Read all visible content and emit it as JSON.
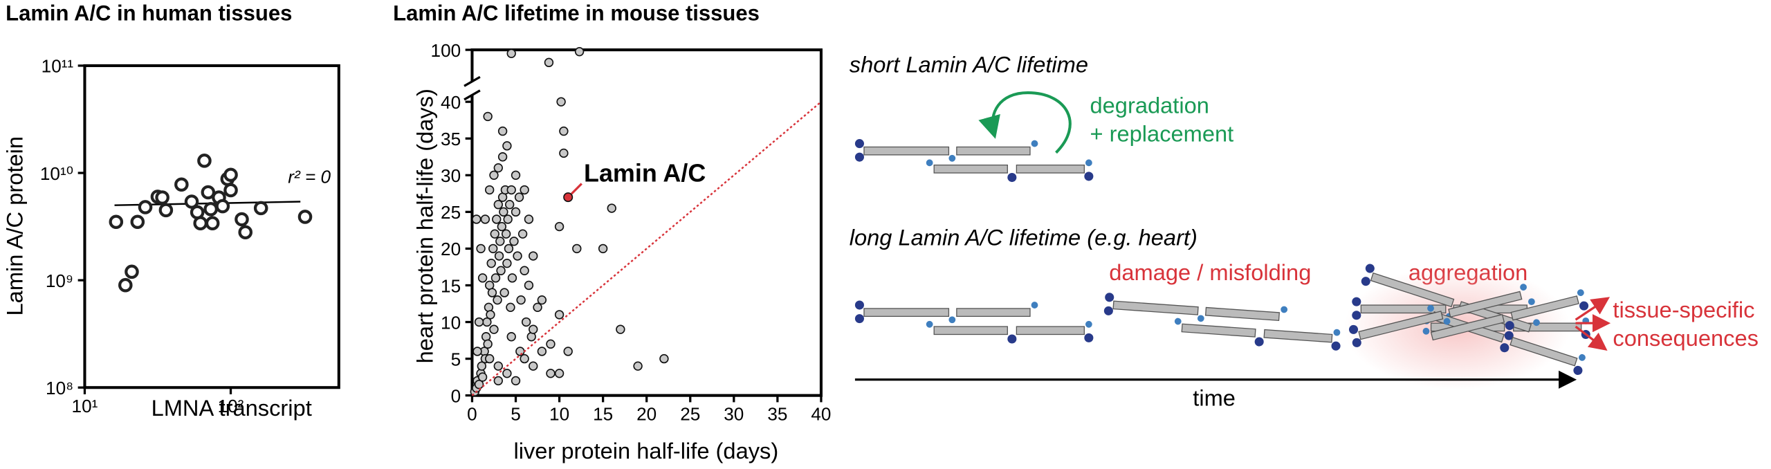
{
  "chart_data": [
    {
      "type": "scatter",
      "title": "Lamin A/C in human tissues",
      "x_label": "LMNA transcript",
      "y_label": "Lamin A/C protein",
      "x": [
        16.4,
        19,
        21,
        23,
        26,
        31.6,
        34,
        36,
        46,
        54,
        59,
        62,
        66,
        70,
        73,
        75,
        83,
        88,
        95,
        100,
        100,
        119,
        126,
        161,
        323
      ],
      "values": [
        3500000000,
        900000000,
        1200000000,
        3500000000,
        4800000000,
        6000000000,
        5900000000,
        4500000000,
        7800000000,
        5400000000,
        4300000000,
        3400000000,
        13000000000,
        6600000000,
        4600000000,
        3400000000,
        5900000000,
        4900000000,
        8800000000,
        9600000000,
        6900000000,
        3700000000,
        2800000000,
        4700000000,
        3900000000
      ],
      "fit": {
        "x": [
          16,
          300
        ],
        "values": [
          5000000000,
          5400000000
        ]
      },
      "annotation": "r² = 0",
      "log_x": true,
      "log_y": true,
      "xlim": [
        10,
        550
      ],
      "ylim": [
        100000000,
        100000000000
      ],
      "xticks": [
        {
          "value": 10,
          "label": "10¹"
        },
        {
          "value": 100,
          "label": "10²"
        }
      ],
      "yticks": [
        {
          "value": 100000000,
          "label": "10⁸"
        },
        {
          "value": 1000000000,
          "label": "10⁹"
        },
        {
          "value": 10000000000,
          "label": "10¹⁰"
        },
        {
          "value": 100000000000,
          "label": "10¹¹"
        }
      ],
      "point_color": "#ffffff"
    },
    {
      "type": "scatter",
      "title": "Lamin A/C lifetime in mouse tissues",
      "x_label": "liver protein half-life (days)",
      "y_label": "heart protein half-life (days)",
      "x": [
        0.3,
        0.5,
        0.6,
        0.8,
        1,
        1.1,
        1.2,
        1.4,
        1.5,
        1.6,
        1.7,
        1.8,
        1.9,
        2,
        2.1,
        2.2,
        2.3,
        2.4,
        2.5,
        2.6,
        2.7,
        2.8,
        2.9,
        3,
        3.1,
        3.2,
        3.3,
        3.4,
        3.5,
        3.6,
        3.7,
        3.8,
        3.9,
        4,
        4.1,
        4.2,
        4.3,
        4.4,
        4.5,
        4.6,
        4.8,
        5,
        5.2,
        5.4,
        5.6,
        5.8,
        6,
        6.2,
        6.5,
        6.8,
        2.5,
        3,
        3.5,
        2,
        1.5,
        1.2,
        0.8,
        0.6,
        1,
        2,
        3,
        4,
        5,
        6,
        7,
        8,
        9,
        3,
        4.5,
        5.5,
        6.5,
        7,
        7.5,
        8,
        10,
        17,
        22,
        19,
        11,
        9,
        7,
        10,
        10.5,
        10.5,
        16,
        15,
        10,
        12,
        0.5,
        1.8,
        3.5,
        4,
        5,
        6,
        10.2
      ],
      "values": [
        0.5,
        1,
        2,
        1.5,
        3,
        4,
        2.5,
        6,
        5,
        8,
        10,
        7,
        12,
        15,
        11,
        18,
        14,
        20,
        9,
        22,
        16,
        24,
        13,
        26,
        19,
        21,
        17,
        23,
        27,
        25,
        14,
        28,
        22,
        18,
        24,
        20,
        26,
        12,
        28,
        16,
        21,
        25,
        19,
        27,
        13,
        22,
        17,
        10,
        24,
        8,
        30,
        31,
        32.5,
        28,
        24,
        16,
        10,
        6,
        20,
        5,
        4,
        3,
        2,
        5,
        4,
        6,
        3,
        2,
        8,
        6,
        15,
        19,
        12,
        13,
        11,
        9,
        5,
        4,
        6,
        7,
        9,
        3,
        36,
        33,
        25.5,
        20,
        23,
        20,
        24,
        38,
        36,
        34,
        30,
        28,
        40
      ],
      "upper": {
        "x": [
          4.5,
          12.3,
          8.8
        ],
        "values": [
          98,
          99,
          93
        ]
      },
      "highlight": {
        "label": "Lamin A/C",
        "x": 11,
        "value": 27,
        "color": "#d8333a"
      },
      "reference_line": {
        "x": [
          0,
          40
        ],
        "values": [
          0,
          40
        ],
        "color": "#d8333a"
      },
      "xlim": [
        0,
        40
      ],
      "ylim": [
        0,
        40
      ],
      "break_ylim": [
        85,
        100
      ],
      "xticks": [
        0,
        5,
        10,
        15,
        20,
        25,
        30,
        35,
        40
      ],
      "yticks": [
        0,
        5,
        10,
        15,
        20,
        25,
        30,
        35,
        40
      ],
      "break_yticks": [
        100
      ],
      "point_color": "#c8c8c8"
    }
  ],
  "diagram": {
    "short": "short Lamin A/C lifetime",
    "degradation": "degradation",
    "replacement": "+ replacement",
    "long": "long Lamin A/C lifetime (e.g. heart)",
    "damage": "damage / misfolding",
    "aggregation": "aggregation",
    "consequences_1": "tissue-specific",
    "consequences_2": "consequences",
    "time": "time"
  }
}
